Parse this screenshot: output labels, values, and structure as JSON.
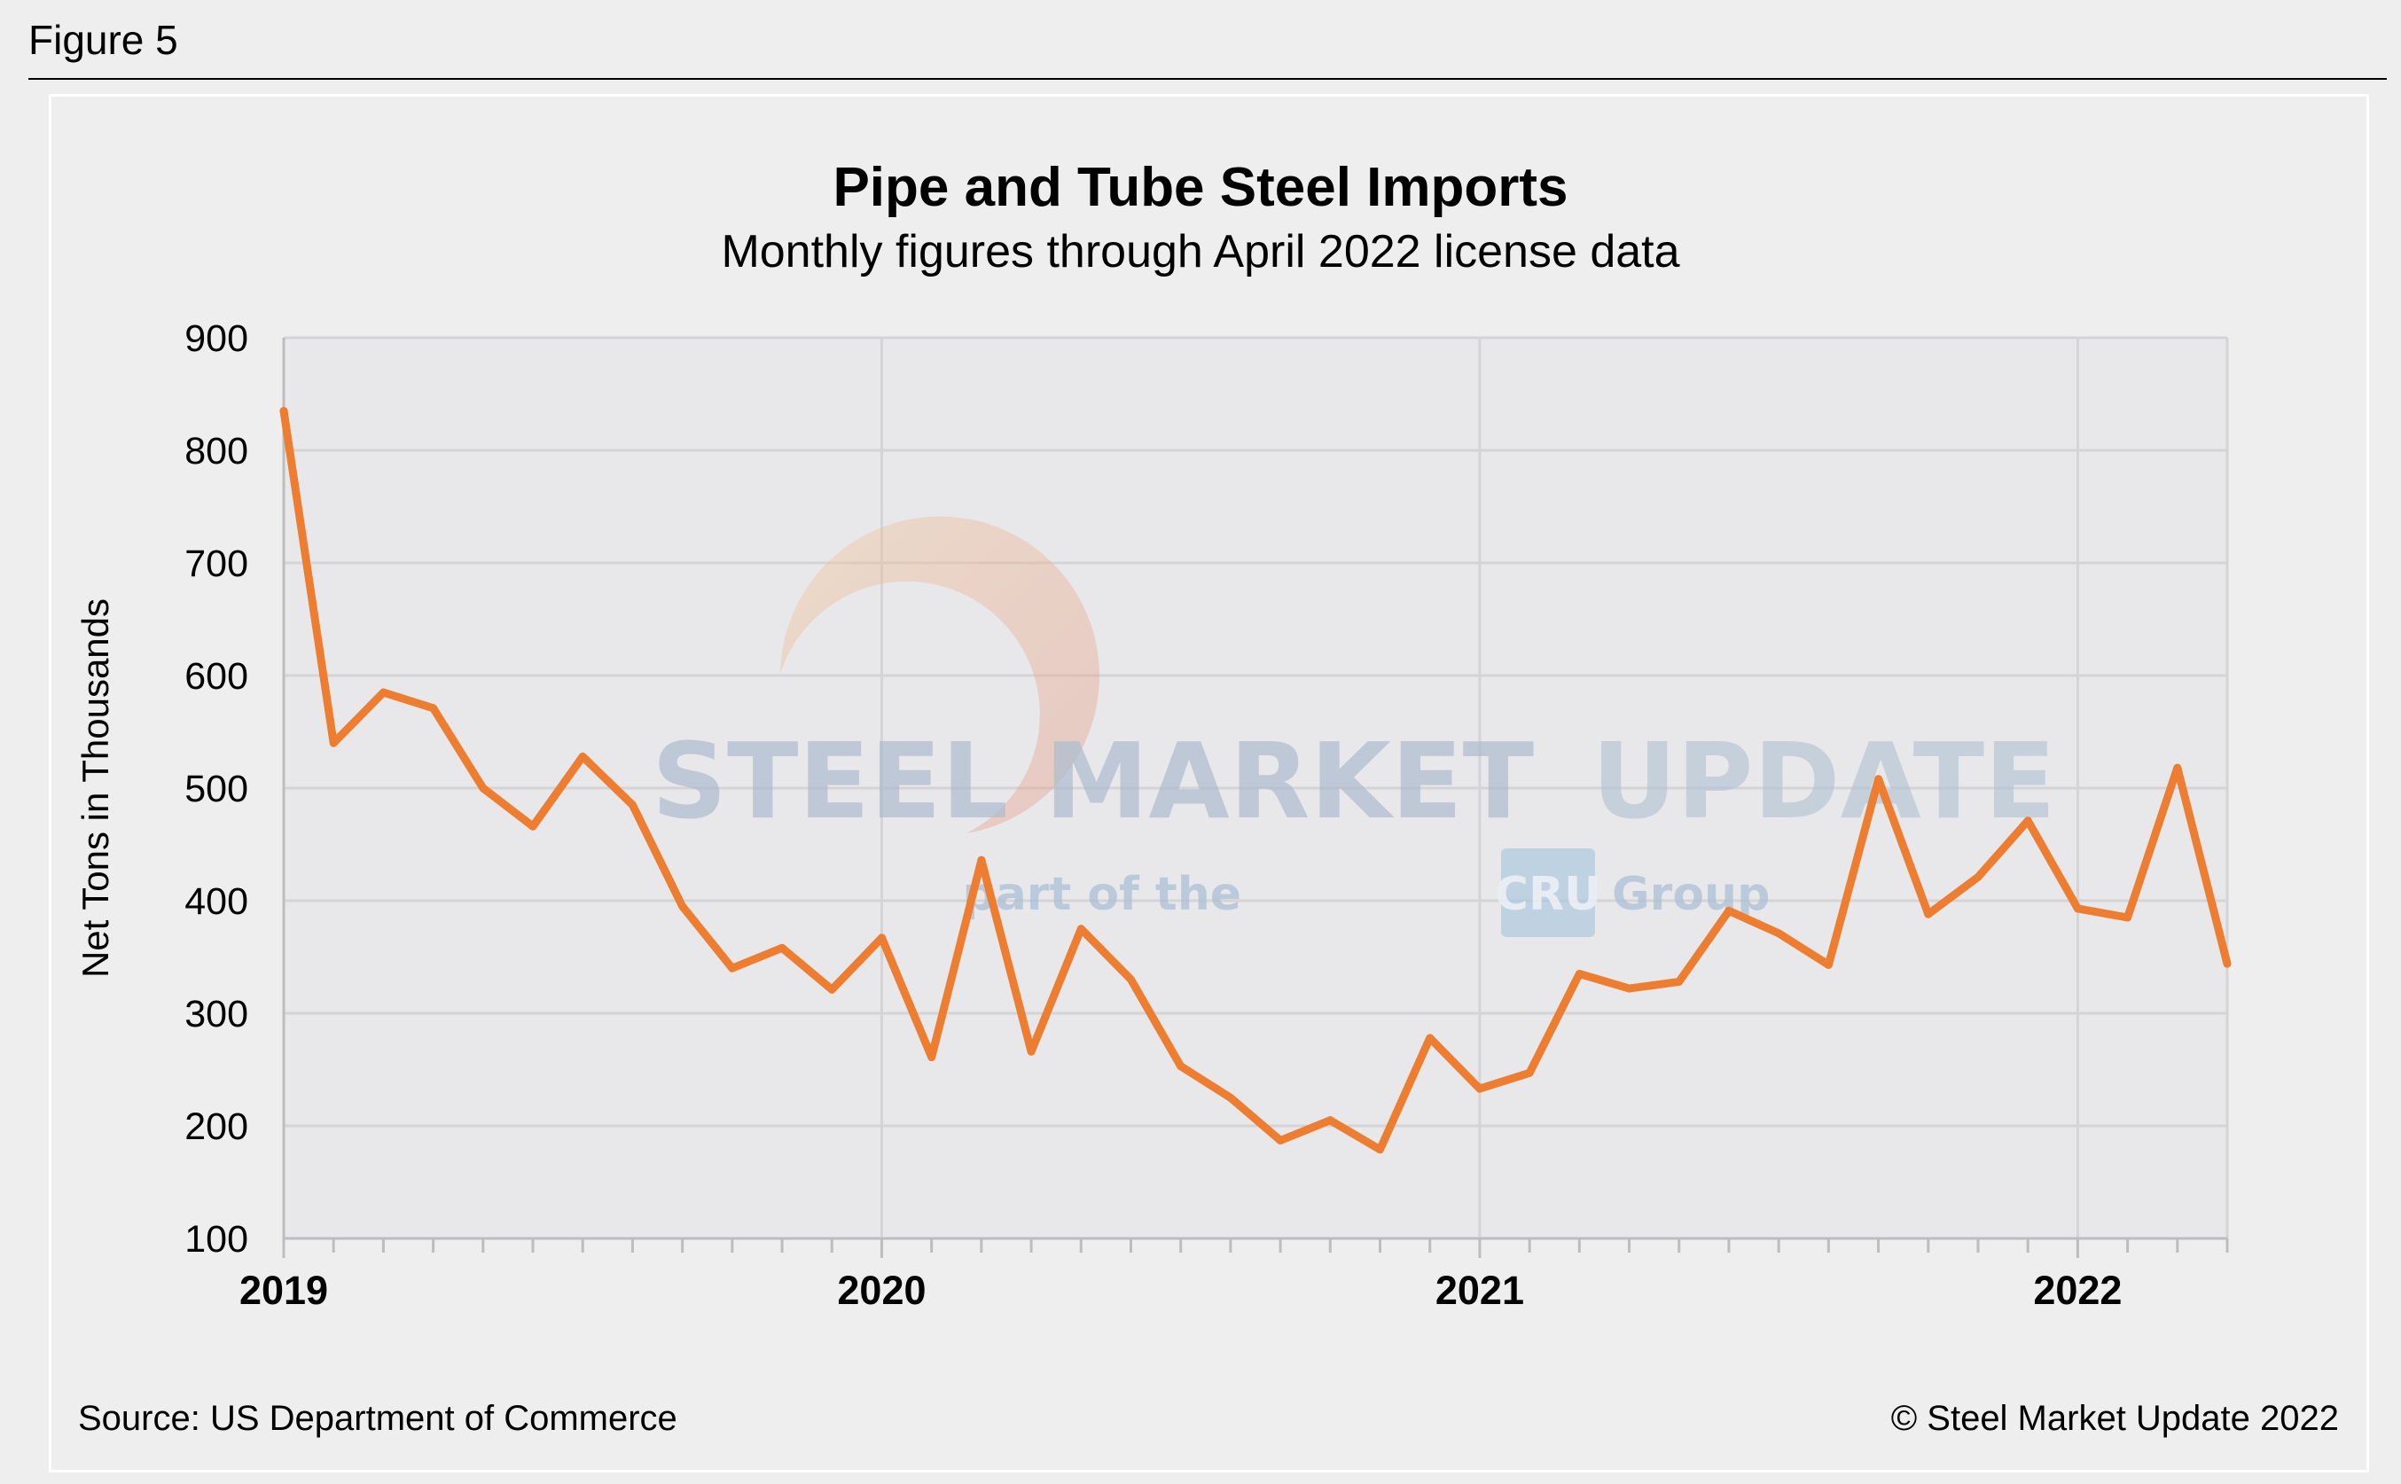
{
  "figure_label": "Figure 5",
  "source_note": "Source: US Department of Commerce",
  "copyright": "© Steel Market Update 2022",
  "watermark": {
    "line1_bold": "STEEL MARKET",
    "line1_light": "UPDATE",
    "line2_pre": "part of the",
    "line2_badge": "CRU",
    "line2_post": "Group"
  },
  "colors": {
    "line": "#ED7D31",
    "plot_bg": "#E8E8EA",
    "grid": "#D4D4D6"
  },
  "chart_data": {
    "type": "line",
    "title": "Pipe and Tube Steel Imports",
    "subtitle": "Monthly figures through April 2022 license data",
    "xlabel": "",
    "ylabel": "Net Tons in Thousands",
    "ylim": [
      100,
      900
    ],
    "yticks": [
      100,
      200,
      300,
      400,
      500,
      600,
      700,
      800,
      900
    ],
    "year_labels": [
      {
        "label": "2019",
        "month_index": 0
      },
      {
        "label": "2020",
        "month_index": 12
      },
      {
        "label": "2021",
        "month_index": 24
      },
      {
        "label": "2022",
        "month_index": 36
      }
    ],
    "grid": true,
    "series": [
      {
        "name": "Pipe and Tube Imports",
        "start": "2019-01",
        "end": "2022-04",
        "values": [
          835,
          540,
          585,
          571,
          500,
          466,
          528,
          485,
          395,
          340,
          358,
          321,
          367,
          261,
          436,
          266,
          375,
          330,
          253,
          225,
          187,
          205,
          179,
          278,
          233,
          247,
          335,
          322,
          328,
          391,
          371,
          343,
          508,
          388,
          421,
          471,
          393,
          385,
          518,
          344
        ]
      }
    ]
  }
}
